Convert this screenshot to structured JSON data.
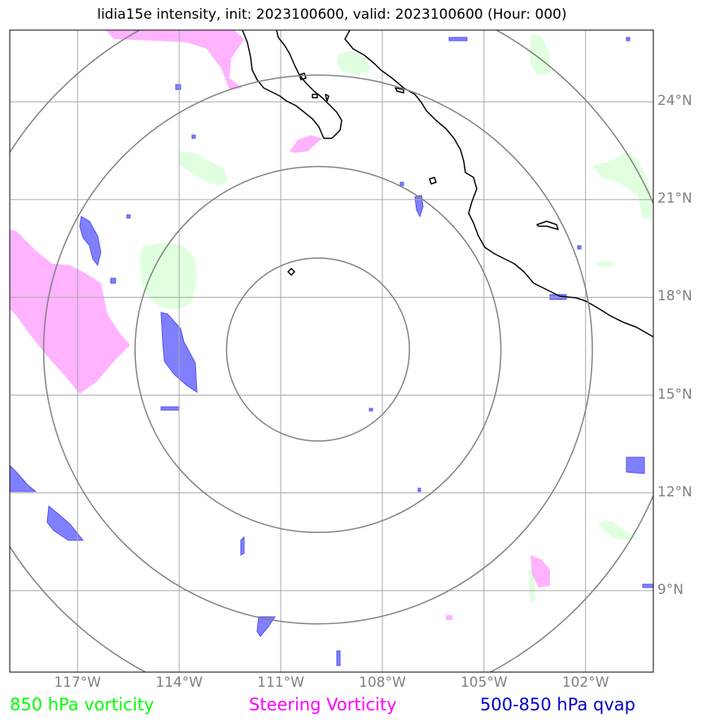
{
  "title": "lidia15e intensity, init: 2023100600, valid: 2023100600 (Hour: 000)",
  "legend": [
    {
      "label": "850 hPa vorticity",
      "color": "#00ff00"
    },
    {
      "label": "Steering Vorticity",
      "color": "#ff00ff"
    },
    {
      "label": "500-850 hPa qvap",
      "color": "#0000cc"
    }
  ],
  "colors": {
    "vorticity_fill": "#dfffdf",
    "steering_fill": "#ffb3ff",
    "qvap_fill": "#8080ff",
    "qvap_edge": "#5050ee",
    "grid": "#a8a8a8",
    "rings": "#808080",
    "coast": "#000000"
  },
  "map": {
    "lon_range": [
      -119.0,
      -100.0
    ],
    "lat_range": [
      6.5,
      26.2
    ],
    "center": {
      "lon": -109.9,
      "lat": 16.4
    },
    "ring_radii_deg": [
      2.7,
      5.4,
      8.1,
      10.8
    ]
  },
  "axes": {
    "lat_ticks": [
      {
        "value": 24,
        "label": "24°N"
      },
      {
        "value": 21,
        "label": "21°N"
      },
      {
        "value": 18,
        "label": "18°N"
      },
      {
        "value": 15,
        "label": "15°N"
      },
      {
        "value": 12,
        "label": "12°N"
      },
      {
        "value": 9,
        "label": "9°N"
      }
    ],
    "lon_ticks": [
      {
        "value": -117,
        "label": "117°W"
      },
      {
        "value": -114,
        "label": "114°W"
      },
      {
        "value": -111,
        "label": "111°W"
      },
      {
        "value": -108,
        "label": "108°W"
      },
      {
        "value": -105,
        "label": "105°W"
      },
      {
        "value": -102,
        "label": "102°W"
      }
    ]
  }
}
